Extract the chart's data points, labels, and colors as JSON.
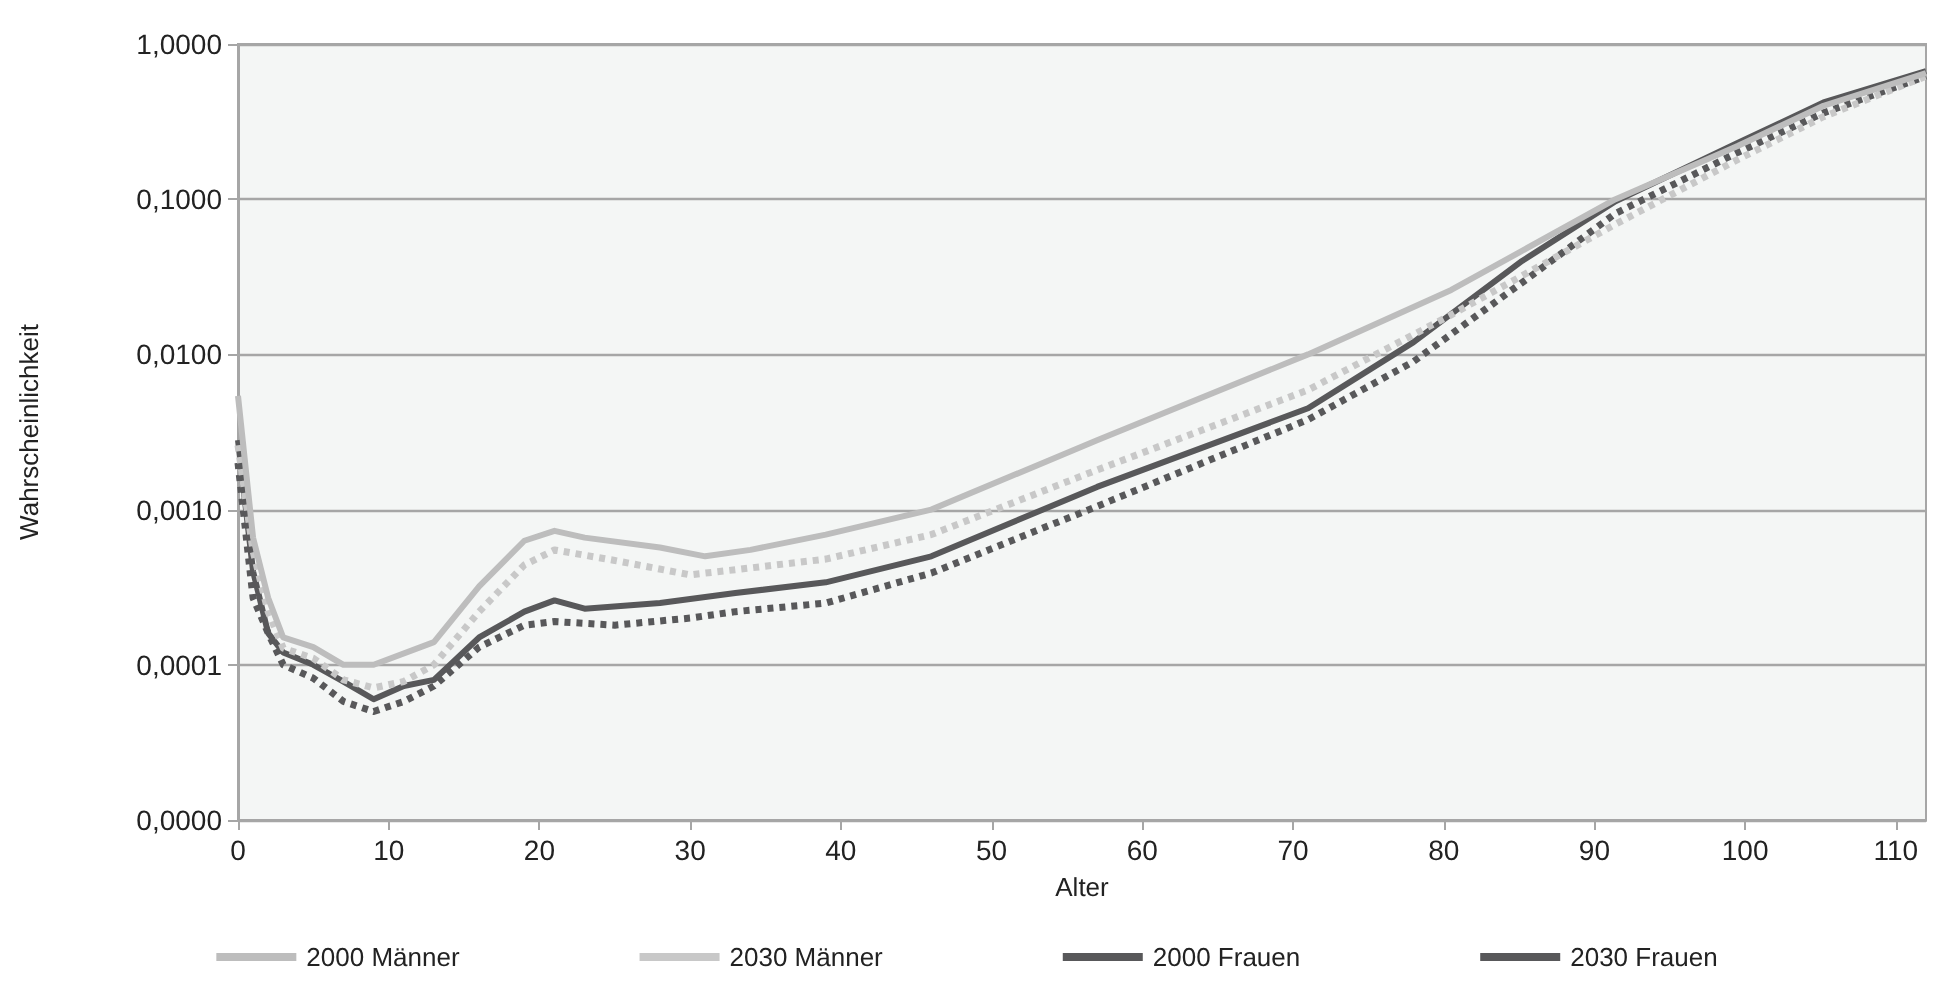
{
  "chart_data": {
    "type": "line",
    "xlabel": "Alter",
    "ylabel": "Wahrscheinlichkeit",
    "log": "y",
    "grid": "y",
    "legend": "bottom",
    "marker": "none",
    "xlim": [
      0,
      112
    ],
    "xticks": [
      0,
      10,
      20,
      30,
      40,
      50,
      60,
      70,
      80,
      90,
      100,
      110
    ],
    "ylim": [
      1e-05,
      1
    ],
    "yticks": [
      {
        "value": 1e-05,
        "label": "0,0000"
      },
      {
        "value": 0.0001,
        "label": "0,0001"
      },
      {
        "value": 0.001,
        "label": "0,0010"
      },
      {
        "value": 0.01,
        "label": "0,0100"
      },
      {
        "value": 0.1,
        "label": "0,1000"
      },
      {
        "value": 1,
        "label": "1,0000"
      }
    ],
    "series": [
      {
        "name": "2000 Männer",
        "color": "#bdbdbd",
        "line_style": "solid",
        "x": [
          0,
          1,
          2,
          3,
          5,
          7,
          9,
          13,
          16,
          19,
          21,
          23,
          28,
          31,
          34,
          39,
          46,
          57,
          71,
          80.5,
          91.4,
          99.5,
          105.2,
          112
        ],
        "values": [
          0.0054,
          0.00066,
          0.00027,
          0.00015,
          0.00013,
          0.0001,
          0.0001,
          0.00014,
          0.00032,
          0.00063,
          0.00073,
          0.00066,
          0.00057,
          0.0005,
          0.00055,
          0.00069,
          0.001,
          0.0028,
          0.01,
          0.026,
          0.1,
          0.22,
          0.4,
          0.65
        ]
      },
      {
        "name": "2030 Männer",
        "color": "#c8c8c8",
        "line_style": "dotted",
        "x": [
          0,
          1,
          2,
          3,
          5,
          7,
          9,
          11,
          13,
          16,
          19,
          21,
          25,
          30,
          33,
          39,
          46,
          57,
          71,
          80.5,
          91.4,
          99.5,
          105.2,
          112
        ],
        "values": [
          0.0026,
          0.00054,
          0.00022,
          0.000128,
          0.00011,
          8e-05,
          7.1e-05,
          7.8e-05,
          0.0001,
          0.00022,
          0.00044,
          0.00055,
          0.00047,
          0.00038,
          0.00041,
          0.00048,
          0.00069,
          0.0018,
          0.0059,
          0.018,
          0.069,
          0.18,
          0.34,
          0.62
        ]
      },
      {
        "name": "2000 Frauen",
        "color": "#58585a",
        "line_style": "solid",
        "x": [
          0,
          1,
          2,
          3,
          5,
          7,
          9,
          11,
          13,
          16,
          19,
          21,
          23,
          28,
          33,
          39,
          46,
          57,
          71,
          78,
          85.2,
          91.4,
          99.5,
          105.2,
          112
        ],
        "values": [
          0.0028,
          0.0004,
          0.00016,
          0.00012,
          0.0001,
          7.8e-05,
          6e-05,
          7.3e-05,
          8e-05,
          0.00015,
          0.00022,
          0.00026,
          0.00023,
          0.00025,
          0.00029,
          0.00034,
          0.0005,
          0.0014,
          0.0045,
          0.012,
          0.04,
          0.097,
          0.23,
          0.42,
          0.67
        ]
      },
      {
        "name": "2030 Frauen",
        "color": "#58585a",
        "line_style": "dotted",
        "x": [
          0,
          1,
          2,
          3,
          5,
          7,
          9,
          11,
          13,
          16,
          19,
          21,
          25,
          30,
          33,
          39,
          46,
          57,
          71,
          78,
          85.2,
          91.4,
          99.5,
          105.2,
          112
        ],
        "values": [
          0.002,
          0.00027,
          0.00016,
          0.0001,
          8.2e-05,
          5.8e-05,
          5e-05,
          5.8e-05,
          7.3e-05,
          0.00013,
          0.00018,
          0.00019,
          0.00018,
          0.0002,
          0.00022,
          0.00025,
          0.00039,
          0.00105,
          0.0038,
          0.009,
          0.029,
          0.081,
          0.2,
          0.36,
          0.62
        ]
      }
    ]
  }
}
